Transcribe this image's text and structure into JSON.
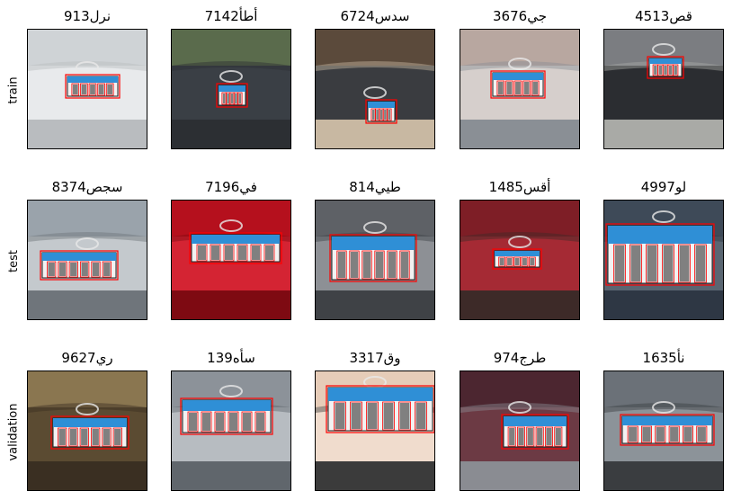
{
  "rows": [
    {
      "label": "train",
      "samples": [
        {
          "title": "913نرل",
          "scene": "white-car"
        },
        {
          "title": "7142أطأ",
          "scene": "dark-street"
        },
        {
          "title": "6724سدس",
          "scene": "dark-car-front"
        },
        {
          "title": "3676جي",
          "scene": "grey-car"
        },
        {
          "title": "4513قص",
          "scene": "black-car-parking"
        }
      ]
    },
    {
      "label": "test",
      "samples": [
        {
          "title": "8374سجص",
          "scene": "silver-toyota"
        },
        {
          "title": "7196في",
          "scene": "red-kia"
        },
        {
          "title": "814طيي",
          "scene": "grey-toyota"
        },
        {
          "title": "1485أقس",
          "scene": "red-car"
        },
        {
          "title": "4997لو",
          "scene": "plate-closeup"
        }
      ]
    },
    {
      "label": "validation",
      "samples": [
        {
          "title": "9627ري",
          "scene": "gold-grille"
        },
        {
          "title": "139سأه",
          "scene": "grey-kia"
        },
        {
          "title": "3317وق",
          "scene": "plate-closeup-2"
        },
        {
          "title": "974طرج",
          "scene": "maroon-toyota"
        },
        {
          "title": "1635نأ",
          "scene": "mitsubishi"
        }
      ]
    }
  ],
  "colors": {
    "box": "#ff0000",
    "plate_blue": "#2f8fd6",
    "plate_white": "#f2f2f2"
  }
}
